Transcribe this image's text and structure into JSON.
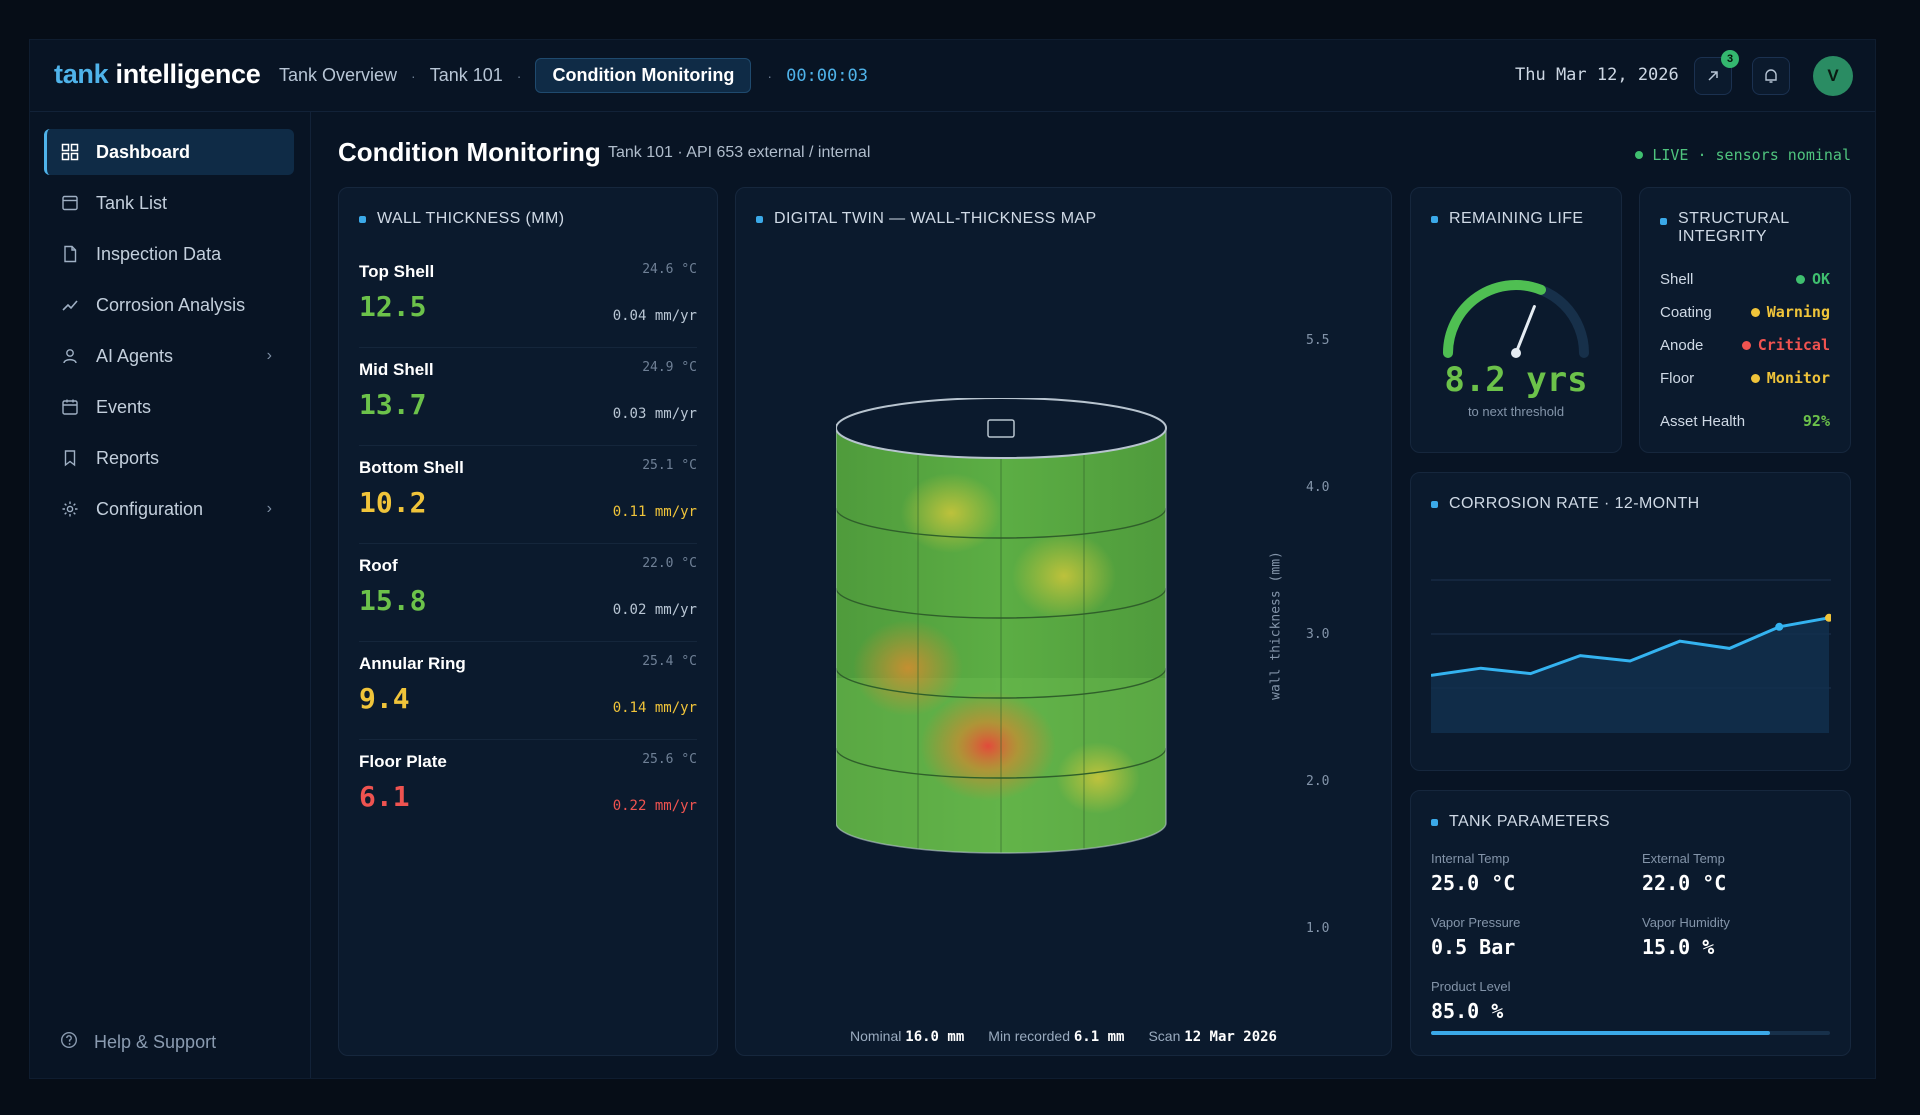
{
  "header": {
    "logo_accent": "tank",
    "logo_rest": "intelligence",
    "breadcrumbs": [
      "Tank Overview",
      "Tank 101",
      "Condition Monitoring"
    ],
    "timer": "00:00:03",
    "date": "Thu Mar 12, 2026",
    "share_badge": "3",
    "avatar_initial": "V",
    "icons": [
      "external-link-icon",
      "bell-icon"
    ]
  },
  "sidebar": {
    "items": [
      {
        "label": "Dashboard",
        "icon": "grid-icon",
        "active": true
      },
      {
        "label": "Tank List",
        "icon": "list-icon"
      },
      {
        "label": "Inspection Data",
        "icon": "document-icon"
      },
      {
        "label": "Corrosion Analysis",
        "icon": "trend-icon"
      },
      {
        "label": "AI Agents",
        "icon": "user-icon",
        "has_submenu": true
      },
      {
        "label": "Events",
        "icon": "calendar-icon"
      },
      {
        "label": "Reports",
        "icon": "bookmark-icon"
      },
      {
        "label": "Configuration",
        "icon": "gear-icon",
        "has_submenu": true
      }
    ],
    "help": "Help & Support"
  },
  "page": {
    "title": "Condition Monitoring",
    "subtitle": "Tank 101 · API 653 external / internal",
    "live": "LIVE · sensors nominal"
  },
  "wall_thickness": {
    "title": "WALL THICKNESS (MM)",
    "rows": [
      {
        "name": "Top Shell",
        "value": "12.5",
        "temp": "24.6 °C",
        "rate": "0.04 mm/yr",
        "status": "green"
      },
      {
        "name": "Mid Shell",
        "value": "13.7",
        "temp": "24.9 °C",
        "rate": "0.03 mm/yr",
        "status": "green"
      },
      {
        "name": "Bottom Shell",
        "value": "10.2",
        "temp": "25.1 °C",
        "rate": "0.11 mm/yr",
        "status": "yellow"
      },
      {
        "name": "Roof",
        "value": "15.8",
        "temp": "22.0 °C",
        "rate": "0.02 mm/yr",
        "status": "green"
      },
      {
        "name": "Annular Ring",
        "value": "9.4",
        "temp": "25.4 °C",
        "rate": "0.14 mm/yr",
        "status": "yellow"
      },
      {
        "name": "Floor Plate",
        "value": "6.1",
        "temp": "25.6 °C",
        "rate": "0.22 mm/yr",
        "status": "red"
      }
    ]
  },
  "digital_twin": {
    "title": "DIGITAL TWIN — WALL-THICKNESS MAP",
    "scale_ticks": [
      "5.5",
      "4.0",
      "3.0",
      "2.0",
      "1.0"
    ],
    "scale_label": "wall thickness (mm)",
    "footer": {
      "nominal_label": "Nominal",
      "nominal_value": "16.0 mm",
      "min_label": "Min recorded",
      "min_value": "6.1 mm",
      "scan_label": "Scan",
      "scan_value": "12 Mar 2026"
    }
  },
  "remaining_life": {
    "title": "REMAINING LIFE",
    "value": "8.2 yrs",
    "caption": "to next threshold",
    "gauge_fraction": 0.62
  },
  "structural": {
    "title": "STRUCTURAL INTEGRITY",
    "rows": [
      {
        "label": "Shell",
        "status": "OK",
        "color": "#3fbf6f"
      },
      {
        "label": "Coating",
        "status": "Warning",
        "color": "#f0c43a"
      },
      {
        "label": "Anode",
        "status": "Critical",
        "color": "#ef5350"
      },
      {
        "label": "Floor",
        "status": "Monitor",
        "color": "#f0c43a"
      }
    ],
    "health_label": "Asset Health",
    "health_value": "92%"
  },
  "corrosion": {
    "title": "CORROSION RATE · 12-MONTH"
  },
  "chart_data": {
    "type": "area",
    "title": "CORROSION RATE · 12-MONTH",
    "x": [
      1,
      2,
      3,
      4,
      5,
      6,
      7,
      8,
      9
    ],
    "values": [
      0.32,
      0.36,
      0.33,
      0.43,
      0.4,
      0.51,
      0.47,
      0.59,
      0.64
    ],
    "ylim": [
      0,
      1
    ],
    "grid": true
  },
  "params": {
    "title": "TANK PARAMETERS",
    "items": [
      {
        "label": "Internal Temp",
        "value": "25.0 °C"
      },
      {
        "label": "External Temp",
        "value": "22.0 °C"
      },
      {
        "label": "Vapor Pressure",
        "value": "0.5 Bar"
      },
      {
        "label": "Vapor Humidity",
        "value": "15.0 %"
      },
      {
        "label": "Product Level",
        "value": "85.0 %"
      }
    ],
    "product_level_fraction": 0.85
  }
}
